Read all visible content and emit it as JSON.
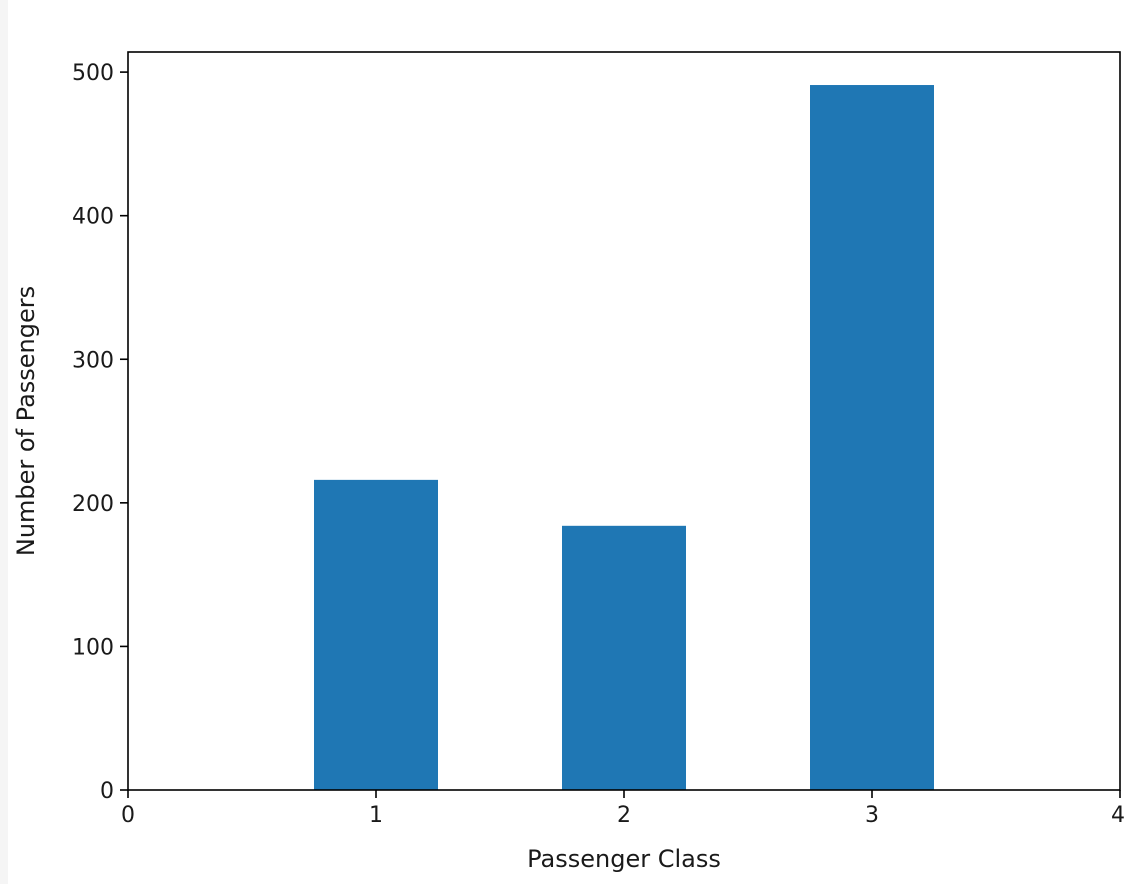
{
  "chart_data": {
    "type": "bar",
    "title": "",
    "xlabel": "Passenger Class",
    "ylabel": "Number of Passengers",
    "categories": [
      1,
      2,
      3
    ],
    "values": [
      216,
      184,
      491
    ],
    "xlim": [
      0,
      4
    ],
    "ylim": [
      0,
      500
    ],
    "x_ticks": [
      0,
      1,
      2,
      3,
      4
    ],
    "y_ticks": [
      0,
      100,
      200,
      300,
      400,
      500
    ],
    "x_tick_labels": [
      "0",
      "1",
      "2",
      "3",
      "4"
    ],
    "y_tick_labels": [
      "0",
      "100",
      "200",
      "300",
      "400",
      "500"
    ],
    "bar_color": "#1f77b4",
    "grid": false,
    "legend": "none"
  }
}
